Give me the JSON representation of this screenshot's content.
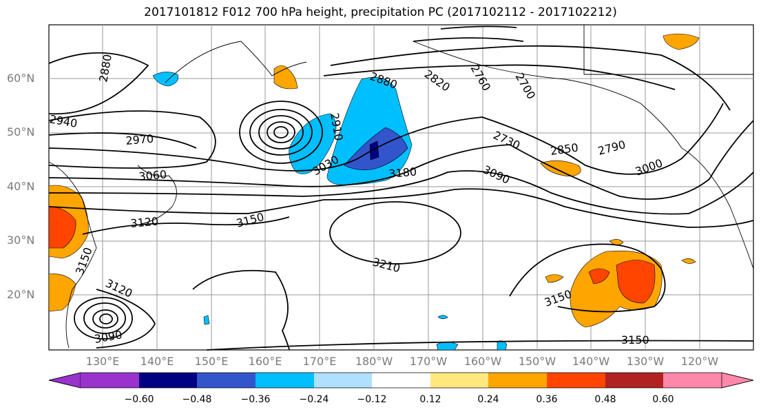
{
  "title": "2017101812 F012 700 hPa height, precipitation PC (2017102112 - 2017102212)",
  "lat_labels": [
    "60°N",
    "50°N",
    "40°N",
    "30°N",
    "20°N"
  ],
  "lon_labels": [
    "130°E",
    "140°E",
    "150°E",
    "160°E",
    "170°E",
    "180°W",
    "170°W",
    "160°W",
    "150°W",
    "140°W",
    "130°W",
    "120°W"
  ],
  "contour_labels": [
    "2880",
    "2820",
    "2760",
    "2700",
    "2940",
    "2880",
    "2910",
    "2970",
    "2850",
    "2790",
    "2730",
    "3060",
    "3030",
    "3180",
    "3090",
    "3000",
    "3120",
    "3150",
    "3210",
    "3150",
    "3120",
    "3150",
    "3090",
    "3150"
  ],
  "colorbar": {
    "ticks": [
      "−0.60",
      "−0.48",
      "−0.36",
      "−0.24",
      "−0.12",
      "0.12",
      "0.24",
      "0.36",
      "0.48",
      "0.60"
    ],
    "colors": [
      "#9933cc",
      "#000080",
      "#3355cc",
      "#00bfff",
      "#b0e0ff",
      "#ffffff",
      "#ffe97f",
      "#ffa500",
      "#ff4500",
      "#b22222",
      "#ff88aa"
    ]
  },
  "colors": {
    "neg_shade": "#00bfff",
    "neg_dark": "#3355cc",
    "pos_shade": "#ffa500",
    "pos_dark": "#ff4500",
    "grid": "#999999"
  }
}
